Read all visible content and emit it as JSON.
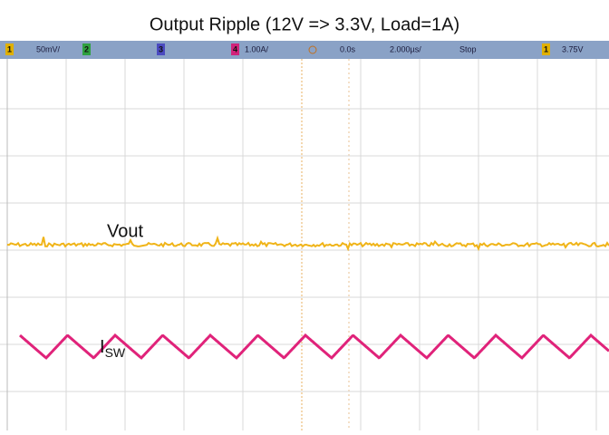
{
  "title": "Output Ripple (12V => 3.3V, Load=1A)",
  "status_bar": {
    "ch1": "1",
    "ch1_scale": "50mV/",
    "ch2": "2",
    "ch3": "3",
    "ch4": "4",
    "ch4_scale": "1.00A/",
    "delay": "0.0s",
    "timebase": "2.000µs/",
    "run_state": "Stop",
    "trigger_channel": "1",
    "trigger_level": "3.75V"
  },
  "traces": {
    "vout": "Vout",
    "isw_main": "I",
    "isw_sub": "SW"
  }
}
